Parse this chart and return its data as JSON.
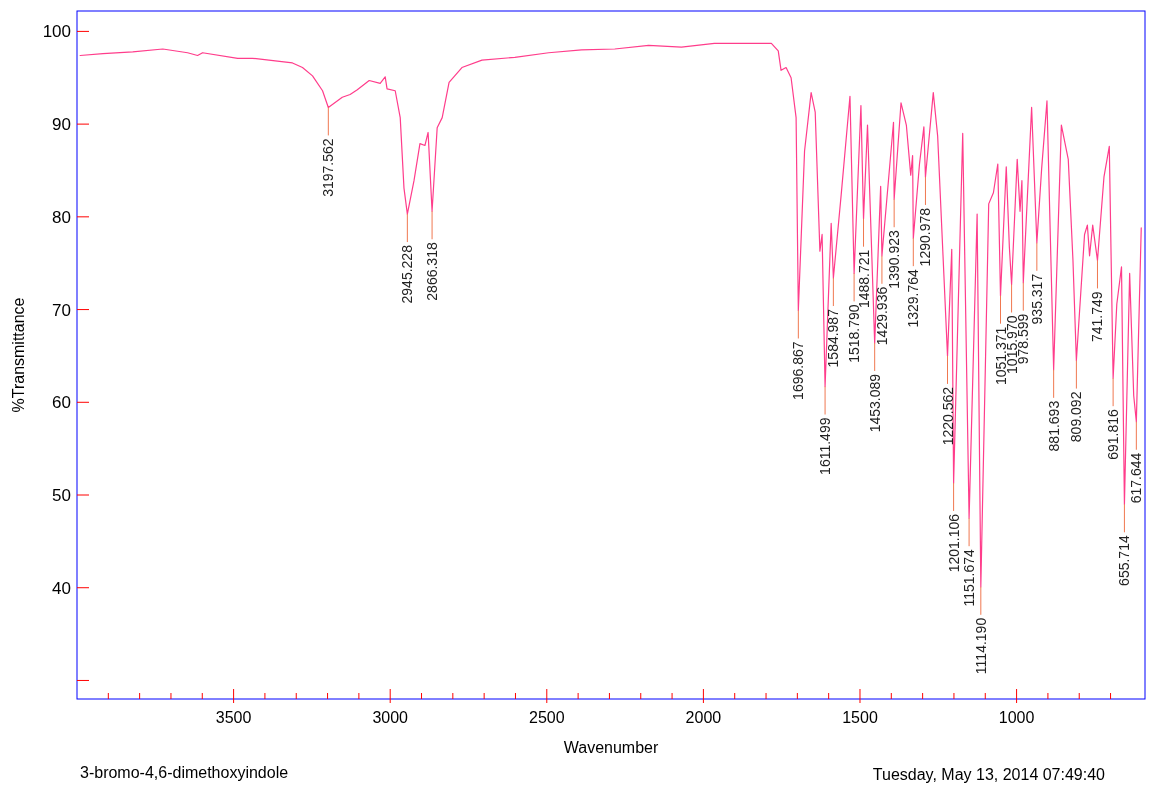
{
  "chart_data": {
    "type": "line",
    "title": "3-bromo-4,6-dimethoxyindole",
    "xlabel": "Wavenumber",
    "ylabel": "%Transmittance",
    "color": "#ff3d8b",
    "x": [
      3990,
      3917,
      3822,
      3726,
      3647,
      3615,
      3599,
      3487,
      3440,
      3360,
      3312,
      3280,
      3248,
      3216,
      3197.562,
      3153,
      3128,
      3105,
      3067,
      3032,
      3016,
      3010,
      2984,
      2968,
      2956,
      2945.228,
      2924,
      2905,
      2889,
      2879,
      2866.318,
      2850,
      2834,
      2812,
      2771,
      2707,
      2602,
      2494,
      2389,
      2283,
      2175,
      2070,
      1965,
      1857,
      1783,
      1761,
      1752,
      1736,
      1720,
      1704,
      1696.867,
      1677,
      1656,
      1643,
      1628,
      1621,
      1611.499,
      1592,
      1584.987,
      1560,
      1532,
      1518.79,
      1497,
      1488.721,
      1476,
      1453.089,
      1434,
      1429.936,
      1393,
      1390.923,
      1369,
      1352,
      1338,
      1332,
      1329.764,
      1310,
      1296,
      1290.978,
      1266,
      1252,
      1220.562,
      1207,
      1201.106,
      1172,
      1151.674,
      1126,
      1114.19,
      1089,
      1074,
      1060,
      1051.371,
      1033,
      1023,
      1015.97,
      998,
      989,
      983,
      978.599,
      952,
      935.317,
      920,
      903,
      881.693,
      857,
      835,
      820,
      809.092,
      783,
      774,
      767,
      757,
      741.749,
      721,
      704,
      691.816,
      680,
      665,
      655.714,
      639,
      626,
      617.644,
      602
    ],
    "values": [
      97.4,
      97.6,
      97.8,
      98.1,
      97.7,
      97.4,
      97.7,
      97.1,
      97.1,
      96.8,
      96.6,
      96.1,
      95.2,
      93.6,
      91.8,
      92.9,
      93.2,
      93.7,
      94.7,
      94.4,
      95.1,
      93.8,
      93.6,
      90.7,
      83.1,
      80.3,
      83.9,
      87.9,
      87.7,
      89.1,
      80.6,
      89.6,
      90.7,
      94.5,
      96.1,
      96.9,
      97.2,
      97.7,
      98.0,
      98.1,
      98.5,
      98.3,
      98.7,
      98.7,
      98.7,
      97.9,
      95.8,
      96.1,
      95.0,
      90.7,
      69.9,
      87.1,
      93.4,
      91.3,
      76.3,
      78.1,
      61.7,
      79.3,
      73.4,
      82.4,
      93.0,
      73.9,
      92.0,
      79.8,
      89.9,
      66.4,
      83.3,
      75.8,
      90.2,
      81.9,
      92.3,
      89.9,
      84.5,
      86.6,
      77.7,
      85.7,
      89.7,
      84.3,
      93.4,
      88.7,
      65.0,
      76.5,
      51.3,
      89.0,
      47.5,
      80.3,
      40.1,
      81.4,
      82.6,
      85.7,
      71.5,
      85.4,
      76.7,
      72.7,
      86.2,
      80.6,
      83.9,
      72.9,
      91.8,
      77.2,
      85.2,
      92.5,
      63.5,
      89.9,
      86.2,
      75.3,
      64.5,
      78.1,
      79.1,
      75.8,
      79.1,
      75.3,
      84.3,
      87.6,
      62.6,
      70.6,
      74.6,
      49.0,
      73.9,
      60.7,
      57.9,
      78.8
    ],
    "xlim": [
      4000,
      590
    ],
    "ylim": [
      28,
      102.2
    ],
    "xticks": [
      {
        "value": 3900,
        "label": null
      },
      {
        "value": 3800,
        "label": null
      },
      {
        "value": 3700,
        "label": null
      },
      {
        "value": 3600,
        "label": null
      },
      3500,
      {
        "value": 3400,
        "label": null
      },
      {
        "value": 3300,
        "label": null
      },
      {
        "value": 3200,
        "label": null
      },
      {
        "value": 3100,
        "label": null
      },
      3000,
      {
        "value": 2900,
        "label": null
      },
      {
        "value": 2800,
        "label": null
      },
      {
        "value": 2700,
        "label": null
      },
      {
        "value": 2600,
        "label": null
      },
      2500,
      {
        "value": 2400,
        "label": null
      },
      {
        "value": 2300,
        "label": null
      },
      {
        "value": 2200,
        "label": null
      },
      {
        "value": 2100,
        "label": null
      },
      2000,
      {
        "value": 1900,
        "label": null
      },
      {
        "value": 1800,
        "label": null
      },
      {
        "value": 1700,
        "label": null
      },
      {
        "value": 1600,
        "label": null
      },
      1500,
      {
        "value": 1400,
        "label": null
      },
      {
        "value": 1300,
        "label": null
      },
      {
        "value": 1200,
        "label": null
      },
      {
        "value": 1100,
        "label": null
      },
      1000,
      {
        "value": 900,
        "label": null
      },
      {
        "value": 800,
        "label": null
      },
      {
        "value": 700,
        "label": null
      }
    ],
    "yticks": [
      {
        "value": 30,
        "label": null
      },
      40,
      50,
      60,
      70,
      80,
      90,
      100
    ],
    "annotations": [
      {
        "text": "3197.562",
        "x": 3197.562,
        "y": 91.8
      },
      {
        "text": "2945.228",
        "x": 2945.228,
        "y": 80.3
      },
      {
        "text": "2866.318",
        "x": 2866.318,
        "y": 80.6
      },
      {
        "text": "1696.867",
        "x": 1696.867,
        "y": 69.9
      },
      {
        "text": "1611.499",
        "x": 1611.499,
        "y": 61.7
      },
      {
        "text": "1584.987",
        "x": 1584.987,
        "y": 73.4
      },
      {
        "text": "1518.790",
        "x": 1518.79,
        "y": 73.9
      },
      {
        "text": "1488.721",
        "x": 1488.721,
        "y": 79.8
      },
      {
        "text": "1453.089",
        "x": 1453.089,
        "y": 66.4
      },
      {
        "text": "1429.936",
        "x": 1429.936,
        "y": 75.8
      },
      {
        "text": "1390.923",
        "x": 1390.923,
        "y": 81.9
      },
      {
        "text": "1329.764",
        "x": 1329.764,
        "y": 77.7
      },
      {
        "text": "1290.978",
        "x": 1290.978,
        "y": 84.3
      },
      {
        "text": "1220.562",
        "x": 1220.562,
        "y": 65.0
      },
      {
        "text": "1201.106",
        "x": 1201.106,
        "y": 51.3
      },
      {
        "text": "1151.674",
        "x": 1151.674,
        "y": 47.5
      },
      {
        "text": "1114.190",
        "x": 1114.19,
        "y": 40.1
      },
      {
        "text": "1051.371",
        "x": 1051.371,
        "y": 71.5
      },
      {
        "text": "1015.970",
        "x": 1015.97,
        "y": 72.7
      },
      {
        "text": "978.599",
        "x": 978.599,
        "y": 72.9
      },
      {
        "text": "935.317",
        "x": 935.317,
        "y": 77.2
      },
      {
        "text": "881.693",
        "x": 881.693,
        "y": 63.5
      },
      {
        "text": "809.092",
        "x": 809.092,
        "y": 64.5
      },
      {
        "text": "741.749",
        "x": 741.749,
        "y": 75.3
      },
      {
        "text": "691.816",
        "x": 691.816,
        "y": 62.6
      },
      {
        "text": "655.714",
        "x": 655.714,
        "y": 49.0
      },
      {
        "text": "617.644",
        "x": 617.644,
        "y": 57.9
      },
      "Tuesday, May 13, 2014 07:49:40"
    ]
  }
}
